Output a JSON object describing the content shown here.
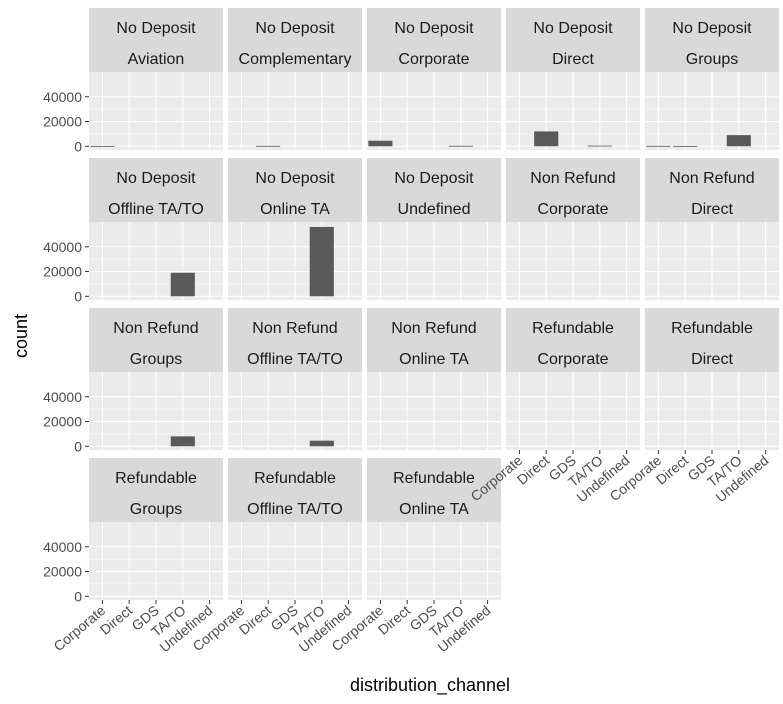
{
  "chart_data": {
    "type": "bar",
    "xlabel": "distribution_channel",
    "ylabel": "count",
    "categories": [
      "Corporate",
      "Direct",
      "GDS",
      "TA/TO",
      "Undefined"
    ],
    "y_ticks": [
      0,
      20000,
      40000
    ],
    "y_tick_labels": [
      "0",
      "20000",
      "40000"
    ],
    "ylim": [
      -3000,
      60000
    ],
    "facet_cols": 5,
    "panels": [
      {
        "strip": [
          "No Deposit",
          "Aviation"
        ],
        "values": [
          200,
          0,
          0,
          0,
          0
        ]
      },
      {
        "strip": [
          "No Deposit",
          "Complementary"
        ],
        "values": [
          0,
          300,
          0,
          0,
          0
        ]
      },
      {
        "strip": [
          "No Deposit",
          "Corporate"
        ],
        "values": [
          4500,
          0,
          0,
          400,
          0
        ]
      },
      {
        "strip": [
          "No Deposit",
          "Direct"
        ],
        "values": [
          0,
          12000,
          0,
          500,
          0
        ]
      },
      {
        "strip": [
          "No Deposit",
          "Groups"
        ],
        "values": [
          300,
          200,
          0,
          9000,
          0
        ]
      },
      {
        "strip": [
          "No Deposit",
          "Offline TA/TO"
        ],
        "values": [
          0,
          0,
          0,
          19000,
          0
        ]
      },
      {
        "strip": [
          "No Deposit",
          "Online TA"
        ],
        "values": [
          0,
          0,
          0,
          56000,
          0
        ]
      },
      {
        "strip": [
          "No Deposit",
          "Undefined"
        ],
        "values": [
          0,
          0,
          0,
          0,
          0
        ]
      },
      {
        "strip": [
          "Non Refund",
          "Corporate"
        ],
        "values": [
          0,
          0,
          0,
          0,
          0
        ]
      },
      {
        "strip": [
          "Non Refund",
          "Direct"
        ],
        "values": [
          0,
          0,
          0,
          0,
          0
        ]
      },
      {
        "strip": [
          "Non Refund",
          "Groups"
        ],
        "values": [
          0,
          0,
          0,
          8000,
          0
        ]
      },
      {
        "strip": [
          "Non Refund",
          "Offline TA/TO"
        ],
        "values": [
          0,
          0,
          0,
          4500,
          0
        ]
      },
      {
        "strip": [
          "Non Refund",
          "Online TA"
        ],
        "values": [
          0,
          0,
          0,
          0,
          0
        ]
      },
      {
        "strip": [
          "Refundable",
          "Corporate"
        ],
        "values": [
          0,
          0,
          0,
          0,
          0
        ]
      },
      {
        "strip": [
          "Refundable",
          "Direct"
        ],
        "values": [
          0,
          0,
          0,
          0,
          0
        ]
      },
      {
        "strip": [
          "Refundable",
          "Groups"
        ],
        "values": [
          0,
          0,
          0,
          0,
          0
        ]
      },
      {
        "strip": [
          "Refundable",
          "Offline TA/TO"
        ],
        "values": [
          0,
          0,
          0,
          0,
          0
        ]
      },
      {
        "strip": [
          "Refundable",
          "Online TA"
        ],
        "values": [
          0,
          0,
          0,
          0,
          0
        ]
      }
    ]
  }
}
